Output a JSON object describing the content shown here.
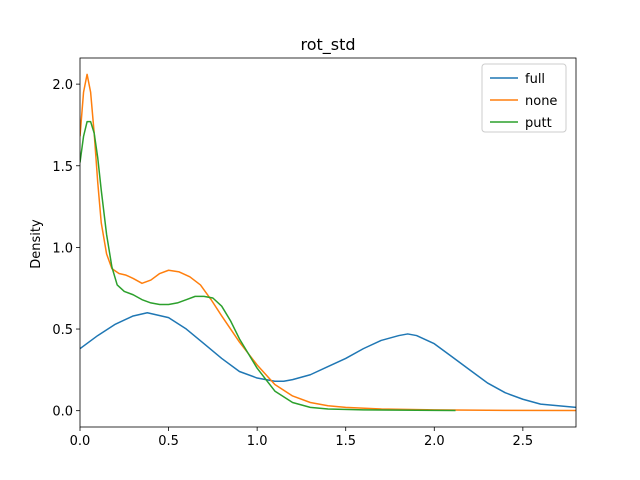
{
  "chart_data": {
    "type": "line",
    "title": "rot_std",
    "xlabel": "",
    "ylabel": "Density",
    "xlim": [
      0,
      2.8
    ],
    "ylim": [
      -0.1,
      2.16
    ],
    "xticks": [
      0.0,
      0.5,
      1.0,
      1.5,
      2.0,
      2.5
    ],
    "xtick_labels": [
      "0.0",
      "0.5",
      "1.0",
      "1.5",
      "2.0",
      "2.5"
    ],
    "yticks": [
      0.0,
      0.5,
      1.0,
      1.5,
      2.0
    ],
    "ytick_labels": [
      "0.0",
      "0.5",
      "1.0",
      "1.5",
      "2.0"
    ],
    "grid": false,
    "legend_position": "top-right",
    "series": [
      {
        "name": "full",
        "color": "#1f77b4",
        "x": [
          0.0,
          0.1,
          0.2,
          0.3,
          0.38,
          0.5,
          0.6,
          0.7,
          0.8,
          0.9,
          1.0,
          1.1,
          1.15,
          1.2,
          1.3,
          1.4,
          1.5,
          1.6,
          1.7,
          1.8,
          1.85,
          1.9,
          2.0,
          2.1,
          2.2,
          2.3,
          2.4,
          2.5,
          2.6,
          2.7,
          2.8
        ],
        "y": [
          0.38,
          0.46,
          0.53,
          0.58,
          0.6,
          0.57,
          0.5,
          0.41,
          0.32,
          0.24,
          0.2,
          0.18,
          0.18,
          0.19,
          0.22,
          0.27,
          0.32,
          0.38,
          0.43,
          0.46,
          0.47,
          0.46,
          0.41,
          0.33,
          0.25,
          0.17,
          0.11,
          0.07,
          0.04,
          0.03,
          0.02
        ]
      },
      {
        "name": "none",
        "color": "#ff7f0e",
        "x": [
          0.0,
          0.02,
          0.04,
          0.06,
          0.08,
          0.1,
          0.12,
          0.15,
          0.18,
          0.22,
          0.26,
          0.3,
          0.35,
          0.4,
          0.45,
          0.5,
          0.56,
          0.62,
          0.68,
          0.74,
          0.8,
          0.9,
          1.0,
          1.1,
          1.2,
          1.3,
          1.4,
          1.5,
          1.7,
          2.0,
          2.4,
          2.8
        ],
        "y": [
          1.68,
          1.95,
          2.06,
          1.95,
          1.7,
          1.4,
          1.15,
          0.96,
          0.87,
          0.84,
          0.83,
          0.81,
          0.78,
          0.8,
          0.84,
          0.86,
          0.85,
          0.82,
          0.77,
          0.68,
          0.58,
          0.42,
          0.28,
          0.16,
          0.09,
          0.05,
          0.03,
          0.02,
          0.01,
          0.005,
          0.002,
          0.001
        ]
      },
      {
        "name": "putt",
        "color": "#2ca02c",
        "x": [
          0.0,
          0.02,
          0.04,
          0.06,
          0.08,
          0.1,
          0.12,
          0.15,
          0.18,
          0.21,
          0.25,
          0.3,
          0.35,
          0.4,
          0.45,
          0.5,
          0.55,
          0.6,
          0.65,
          0.7,
          0.75,
          0.8,
          0.85,
          0.9,
          1.0,
          1.1,
          1.2,
          1.3,
          1.4,
          1.6,
          1.8,
          2.0,
          2.12
        ],
        "y": [
          1.52,
          1.68,
          1.77,
          1.77,
          1.7,
          1.55,
          1.35,
          1.08,
          0.88,
          0.77,
          0.73,
          0.71,
          0.68,
          0.66,
          0.65,
          0.65,
          0.66,
          0.68,
          0.7,
          0.7,
          0.69,
          0.64,
          0.55,
          0.44,
          0.26,
          0.12,
          0.05,
          0.02,
          0.01,
          0.005,
          0.003,
          0.002,
          0.001
        ]
      }
    ]
  }
}
